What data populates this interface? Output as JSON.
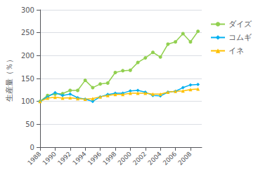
{
  "chart_data": {
    "type": "line",
    "x": [
      1988,
      1989,
      1990,
      1991,
      1992,
      1993,
      1994,
      1995,
      1996,
      1997,
      1998,
      1999,
      2000,
      2001,
      2002,
      2003,
      2004,
      2005,
      2006,
      2007,
      2008,
      2009
    ],
    "series": [
      {
        "name": "ダイズ",
        "color": "#92d050",
        "marker": "circle",
        "values": [
          100,
          113,
          116,
          117,
          124,
          124,
          146,
          130,
          138,
          140,
          163,
          167,
          168,
          185,
          195,
          207,
          197,
          225,
          230,
          248,
          230,
          253
        ]
      },
      {
        "name": "コムギ",
        "color": "#00b0f0",
        "marker": "diamond",
        "values": [
          100,
          110,
          119,
          113,
          116,
          108,
          105,
          100,
          110,
          115,
          118,
          118,
          123,
          124,
          120,
          113,
          112,
          120,
          122,
          130,
          136,
          137
        ]
      },
      {
        "name": "イネ",
        "color": "#ffc000",
        "marker": "triangle",
        "values": [
          100,
          107,
          109,
          107,
          108,
          106,
          105,
          106,
          110,
          113,
          115,
          115,
          118,
          118,
          118,
          116,
          116,
          120,
          122,
          123,
          126,
          127
        ]
      }
    ],
    "ylabel": "生産量（％）",
    "xlim": [
      1988,
      2009.5
    ],
    "xticks": [
      1988,
      1990,
      1992,
      1994,
      1996,
      1998,
      2000,
      2002,
      2004,
      2006,
      2008
    ],
    "ylim": [
      0,
      300
    ],
    "yticks": [
      0,
      50,
      100,
      150,
      200,
      250,
      300
    ],
    "grid": true,
    "legend": "right"
  }
}
